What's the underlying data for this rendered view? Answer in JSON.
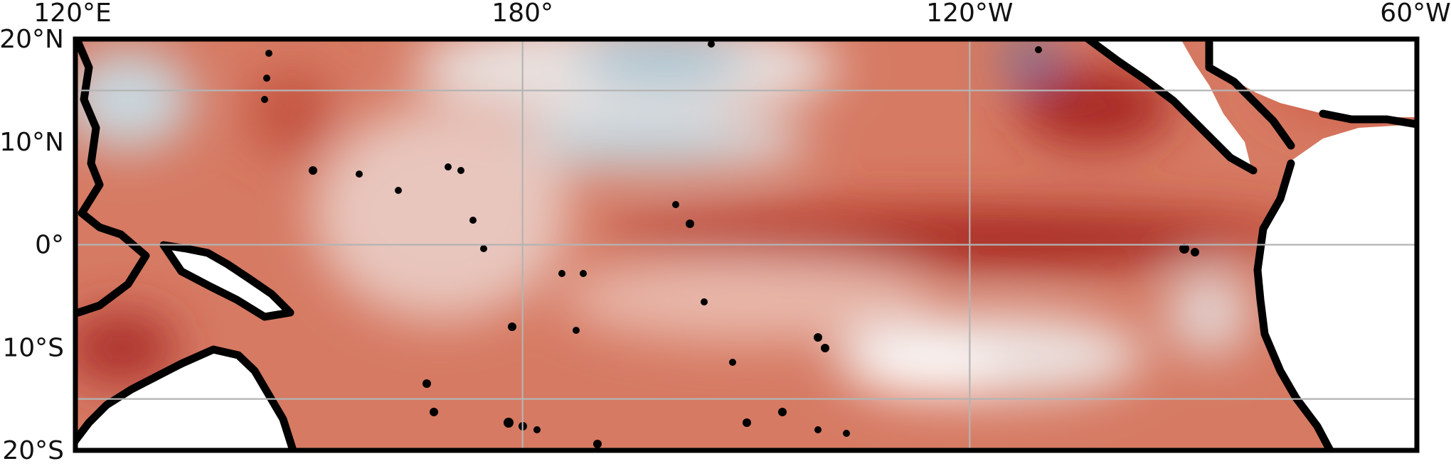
{
  "map": {
    "projection": "PlateCarree",
    "extent": {
      "lon_min": 120,
      "lon_max": 300,
      "lat_min": -20,
      "lat_max": 20
    },
    "colormap": "diverging red-blue",
    "colors": {
      "warm_strong": "#9e1b1b",
      "warm": "#d0664f",
      "warm_light": "#e9b3a4",
      "neutral": "#f3efee",
      "cool_light": "#c2d6de",
      "cool": "#8fb6c9",
      "cool_strong": "#1f6fb8"
    },
    "lon_ticks": [
      {
        "value": 120,
        "label": "120°E"
      },
      {
        "value": 180,
        "label": "180°"
      },
      {
        "value": 240,
        "label": "120°W"
      },
      {
        "value": 300,
        "label": "60°W"
      }
    ],
    "lat_ticks": [
      {
        "value": 20,
        "label": "20°N"
      },
      {
        "value": 10,
        "label": "10°N"
      },
      {
        "value": 0,
        "label": "0°"
      },
      {
        "value": -10,
        "label": "10°S"
      },
      {
        "value": -20,
        "label": "20°S"
      }
    ],
    "gridlines": {
      "lon": [
        180,
        240
      ],
      "lat": [
        15,
        0,
        -15
      ]
    }
  }
}
